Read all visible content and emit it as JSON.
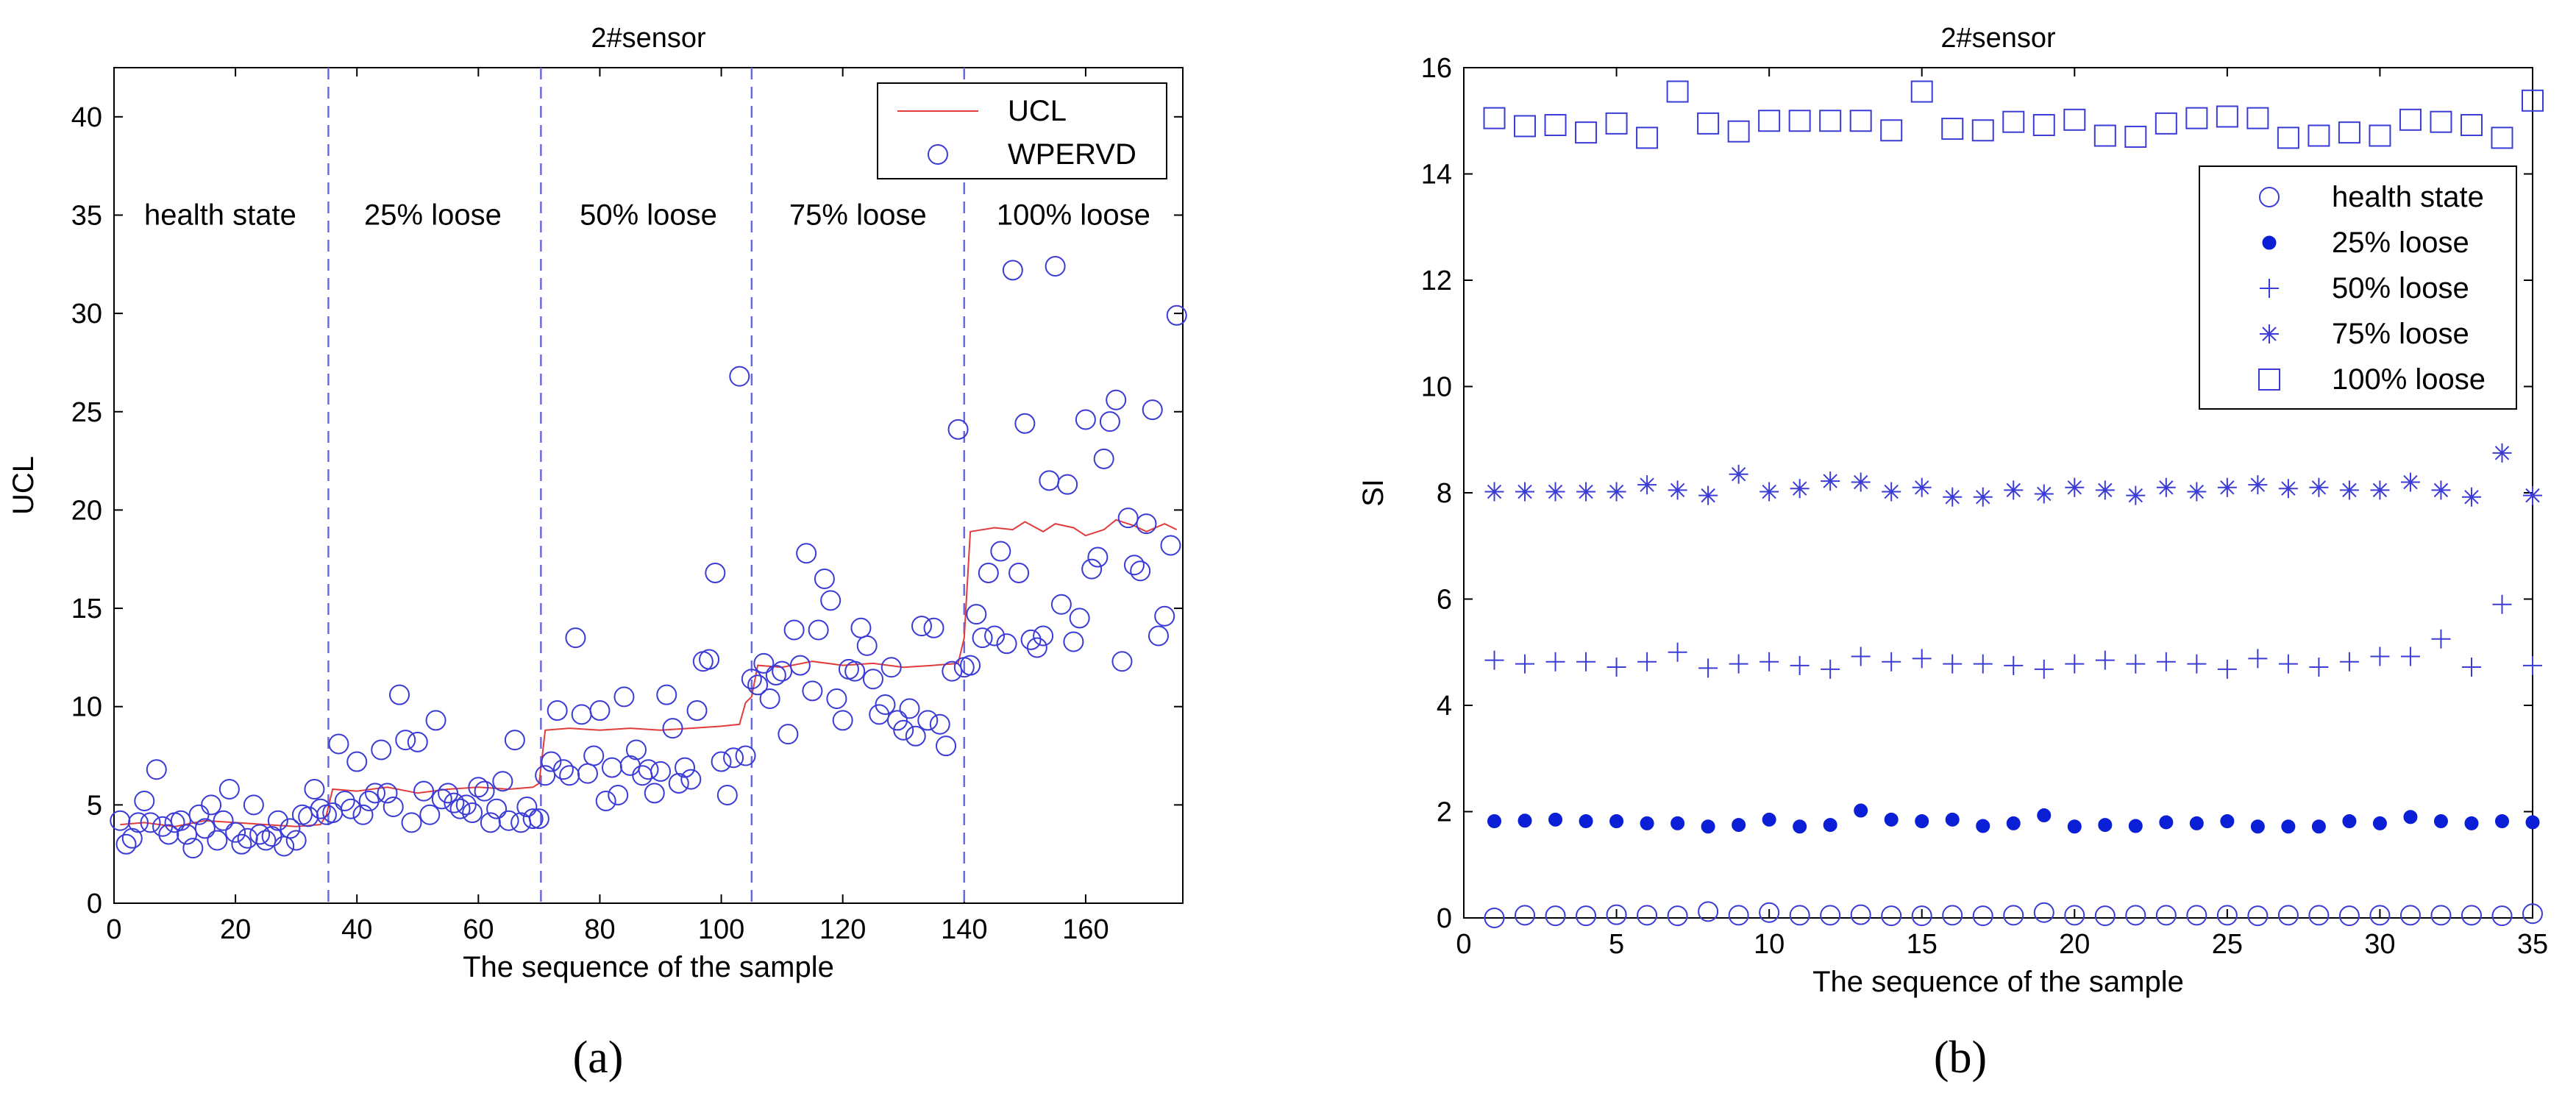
{
  "colors": {
    "marker": "#3b3bd6",
    "ucl": "#e23b3b",
    "divider": "#6b6be0",
    "axis": "#000000"
  },
  "captions": {
    "a": "(a)",
    "b": "(b)"
  },
  "chart_data": [
    {
      "type": "scatter",
      "title": "2#sensor",
      "xlabel": "The sequence of the sample",
      "ylabel": "UCL",
      "xlim": [
        0,
        176
      ],
      "ylim": [
        0,
        42.5
      ],
      "xticks": [
        0,
        20,
        40,
        60,
        80,
        100,
        120,
        140,
        160
      ],
      "yticks": [
        0,
        5,
        10,
        15,
        20,
        25,
        30,
        35,
        40
      ],
      "legend": {
        "position": "top-right",
        "entries": [
          "UCL",
          "WPERVD"
        ]
      },
      "dividers": [
        35.3,
        70.3,
        105,
        140
      ],
      "region_labels": [
        {
          "label": "health state",
          "x": 17.5,
          "y": 35
        },
        {
          "label": "25% loose",
          "x": 52.5,
          "y": 35
        },
        {
          "label": "50% loose",
          "x": 88,
          "y": 35
        },
        {
          "label": "75% loose",
          "x": 122.5,
          "y": 35
        },
        {
          "label": "100% loose",
          "x": 158,
          "y": 35
        }
      ],
      "ucl": {
        "name": "UCL",
        "x": [
          1,
          5,
          10,
          15,
          20,
          25,
          30,
          34,
          35,
          36,
          40,
          45,
          50,
          55,
          60,
          65,
          69,
          70,
          71,
          75,
          80,
          85,
          90,
          95,
          100,
          103,
          104,
          105,
          106,
          110,
          115,
          120,
          125,
          130,
          135,
          139,
          140,
          141,
          145,
          148,
          150,
          153,
          155,
          158,
          160,
          163,
          165,
          168,
          170,
          173,
          175
        ],
        "y": [
          4.0,
          4.1,
          3.9,
          4.2,
          4.1,
          4.0,
          3.9,
          4.0,
          4.5,
          5.8,
          5.7,
          5.9,
          5.6,
          5.8,
          5.9,
          5.8,
          5.9,
          6.1,
          8.8,
          8.9,
          8.8,
          8.9,
          8.8,
          8.9,
          9.0,
          9.1,
          10.2,
          10.5,
          12.1,
          12.0,
          12.3,
          12.1,
          12.2,
          12.0,
          12.1,
          12.2,
          13.5,
          18.9,
          19.1,
          19.0,
          19.4,
          18.9,
          19.3,
          19.1,
          18.7,
          19.0,
          19.5,
          19.2,
          18.9,
          19.3,
          19.0
        ]
      },
      "series": [
        {
          "name": "WPERVD",
          "x": [
            1,
            2,
            3,
            4,
            5,
            6,
            7,
            8,
            9,
            10,
            11,
            12,
            13,
            14,
            15,
            16,
            17,
            18,
            19,
            20,
            21,
            22,
            23,
            24,
            25,
            26,
            27,
            28,
            29,
            30,
            31,
            32,
            33,
            34,
            35,
            36,
            37,
            38,
            39,
            40,
            41,
            42,
            43,
            44,
            45,
            46,
            47,
            48,
            49,
            50,
            51,
            52,
            53,
            54,
            55,
            56,
            57,
            58,
            59,
            60,
            61,
            62,
            63,
            64,
            65,
            66,
            67,
            68,
            69,
            70,
            71,
            72,
            73,
            74,
            75,
            76,
            77,
            78,
            79,
            80,
            81,
            82,
            83,
            84,
            85,
            86,
            87,
            88,
            89,
            90,
            91,
            92,
            93,
            94,
            95,
            96,
            97,
            98,
            99,
            100,
            101,
            102,
            103,
            104,
            105,
            106,
            107,
            108,
            109,
            110,
            111,
            112,
            113,
            114,
            115,
            116,
            117,
            118,
            119,
            120,
            121,
            122,
            123,
            124,
            125,
            126,
            127,
            128,
            129,
            130,
            131,
            132,
            133,
            134,
            135,
            136,
            137,
            138,
            139,
            140,
            141,
            142,
            143,
            144,
            145,
            146,
            147,
            148,
            149,
            150,
            151,
            152,
            153,
            154,
            155,
            156,
            157,
            158,
            159,
            160,
            161,
            162,
            163,
            164,
            165,
            166,
            167,
            168,
            169,
            170,
            171,
            172,
            173,
            174,
            175
          ],
          "y": [
            4.2,
            3.0,
            3.3,
            4.1,
            5.2,
            4.1,
            6.8,
            3.9,
            3.5,
            4.1,
            4.2,
            3.5,
            2.8,
            4.5,
            3.8,
            5.0,
            3.2,
            4.2,
            5.8,
            3.6,
            3.0,
            3.3,
            5.0,
            3.5,
            3.2,
            3.4,
            4.2,
            2.9,
            3.8,
            3.2,
            4.5,
            4.4,
            5.8,
            4.8,
            4.5,
            4.6,
            8.1,
            5.2,
            4.8,
            7.2,
            4.5,
            5.2,
            5.6,
            7.8,
            5.6,
            4.9,
            10.6,
            8.3,
            4.1,
            8.2,
            5.7,
            4.5,
            9.3,
            5.3,
            5.6,
            5.1,
            4.8,
            5.0,
            4.6,
            5.9,
            5.7,
            4.1,
            4.8,
            6.2,
            4.2,
            8.3,
            4.1,
            4.9,
            4.3,
            4.3,
            6.5,
            7.2,
            9.8,
            6.8,
            6.5,
            13.5,
            9.6,
            6.6,
            7.5,
            9.8,
            5.2,
            6.9,
            5.5,
            10.5,
            7.0,
            7.8,
            6.5,
            6.8,
            5.6,
            6.7,
            10.6,
            8.9,
            6.1,
            6.9,
            6.3,
            9.8,
            12.3,
            12.4,
            16.8,
            7.2,
            5.5,
            7.4,
            26.8,
            7.5,
            11.4,
            11.1,
            12.2,
            10.4,
            11.6,
            11.8,
            8.6,
            13.9,
            12.1,
            17.8,
            10.8,
            13.9,
            16.5,
            15.4,
            10.4,
            9.3,
            11.9,
            11.8,
            14.0,
            13.1,
            11.4,
            9.6,
            10.1,
            12.0,
            9.3,
            8.8,
            9.9,
            8.5,
            14.1,
            9.3,
            14.0,
            9.1,
            8.0,
            11.8,
            24.1,
            12.0,
            12.1,
            14.7,
            13.5,
            16.8,
            13.6,
            17.9,
            13.2,
            32.2,
            16.8,
            24.4,
            13.4,
            13.0,
            13.6,
            21.5,
            32.4,
            15.2,
            21.3,
            13.3,
            14.5,
            24.6,
            17.0,
            17.6,
            22.6,
            24.5,
            25.6,
            12.3,
            19.6,
            17.2,
            16.9,
            19.3,
            25.1,
            13.6,
            14.6,
            18.2,
            29.9
          ]
        }
      ]
    },
    {
      "type": "scatter",
      "title": "2#sensor",
      "xlabel": "The sequence of the sample",
      "ylabel": "SI",
      "xlim": [
        0,
        35
      ],
      "ylim": [
        0,
        16
      ],
      "xticks": [
        0,
        5,
        10,
        15,
        20,
        25,
        30,
        35
      ],
      "yticks": [
        0,
        2,
        4,
        6,
        8,
        10,
        12,
        14,
        16
      ],
      "legend": {
        "position": "upper-right"
      },
      "series": [
        {
          "name": "health state",
          "marker": "circle",
          "x": [
            1,
            2,
            3,
            4,
            5,
            6,
            7,
            8,
            9,
            10,
            11,
            12,
            13,
            14,
            15,
            16,
            17,
            18,
            19,
            20,
            21,
            22,
            23,
            24,
            25,
            26,
            27,
            28,
            29,
            30,
            31,
            32,
            33,
            34,
            35
          ],
          "y": [
            0.0,
            0.05,
            0.04,
            0.04,
            0.06,
            0.05,
            0.04,
            0.12,
            0.05,
            0.1,
            0.05,
            0.05,
            0.06,
            0.04,
            0.04,
            0.05,
            0.04,
            0.05,
            0.1,
            0.05,
            0.04,
            0.05,
            0.05,
            0.05,
            0.05,
            0.04,
            0.05,
            0.05,
            0.04,
            0.05,
            0.05,
            0.05,
            0.05,
            0.04,
            0.08
          ]
        },
        {
          "name": "25% loose",
          "marker": "dot",
          "x": [
            1,
            2,
            3,
            4,
            5,
            6,
            7,
            8,
            9,
            10,
            11,
            12,
            13,
            14,
            15,
            16,
            17,
            18,
            19,
            20,
            21,
            22,
            23,
            24,
            25,
            26,
            27,
            28,
            29,
            30,
            31,
            32,
            33,
            34,
            35
          ],
          "y": [
            1.82,
            1.83,
            1.85,
            1.82,
            1.82,
            1.78,
            1.78,
            1.72,
            1.75,
            1.85,
            1.72,
            1.75,
            2.02,
            1.85,
            1.82,
            1.85,
            1.73,
            1.78,
            1.93,
            1.72,
            1.75,
            1.73,
            1.8,
            1.78,
            1.82,
            1.72,
            1.72,
            1.72,
            1.82,
            1.78,
            1.9,
            1.82,
            1.78,
            1.82,
            1.8
          ]
        },
        {
          "name": "50% loose",
          "marker": "plus",
          "x": [
            1,
            2,
            3,
            4,
            5,
            6,
            7,
            8,
            9,
            10,
            11,
            12,
            13,
            14,
            15,
            16,
            17,
            18,
            19,
            20,
            21,
            22,
            23,
            24,
            25,
            26,
            27,
            28,
            29,
            30,
            31,
            32,
            33,
            34,
            35
          ],
          "y": [
            4.85,
            4.78,
            4.82,
            4.82,
            4.72,
            4.82,
            5.0,
            4.7,
            4.78,
            4.82,
            4.75,
            4.68,
            4.92,
            4.82,
            4.88,
            4.78,
            4.78,
            4.75,
            4.68,
            4.78,
            4.85,
            4.78,
            4.82,
            4.78,
            4.68,
            4.88,
            4.78,
            4.72,
            4.82,
            4.92,
            4.92,
            5.25,
            4.72,
            5.9,
            4.75
          ]
        },
        {
          "name": "75% loose",
          "marker": "star",
          "x": [
            1,
            2,
            3,
            4,
            5,
            6,
            7,
            8,
            9,
            10,
            11,
            12,
            13,
            14,
            15,
            16,
            17,
            18,
            19,
            20,
            21,
            22,
            23,
            24,
            25,
            26,
            27,
            28,
            29,
            30,
            31,
            32,
            33,
            34,
            35
          ],
          "y": [
            8.02,
            8.02,
            8.02,
            8.02,
            8.02,
            8.15,
            8.05,
            7.95,
            8.35,
            8.02,
            8.08,
            8.22,
            8.2,
            8.02,
            8.1,
            7.92,
            7.92,
            8.05,
            7.98,
            8.1,
            8.05,
            7.95,
            8.1,
            8.02,
            8.1,
            8.15,
            8.08,
            8.1,
            8.05,
            8.05,
            8.2,
            8.05,
            7.92,
            8.75,
            7.95
          ]
        },
        {
          "name": "100% loose",
          "marker": "square",
          "x": [
            1,
            2,
            3,
            4,
            5,
            6,
            7,
            8,
            9,
            10,
            11,
            12,
            13,
            14,
            15,
            16,
            17,
            18,
            19,
            20,
            21,
            22,
            23,
            24,
            25,
            26,
            27,
            28,
            29,
            30,
            31,
            32,
            33,
            34,
            35
          ],
          "y": [
            15.05,
            14.9,
            14.92,
            14.78,
            14.95,
            14.68,
            15.55,
            14.95,
            14.8,
            15.0,
            15.0,
            15.0,
            15.0,
            14.82,
            15.55,
            14.85,
            14.82,
            14.98,
            14.92,
            15.02,
            14.72,
            14.7,
            14.95,
            15.05,
            15.08,
            15.05,
            14.68,
            14.72,
            14.78,
            14.72,
            15.02,
            14.98,
            14.92,
            14.68,
            15.38
          ]
        }
      ]
    }
  ]
}
